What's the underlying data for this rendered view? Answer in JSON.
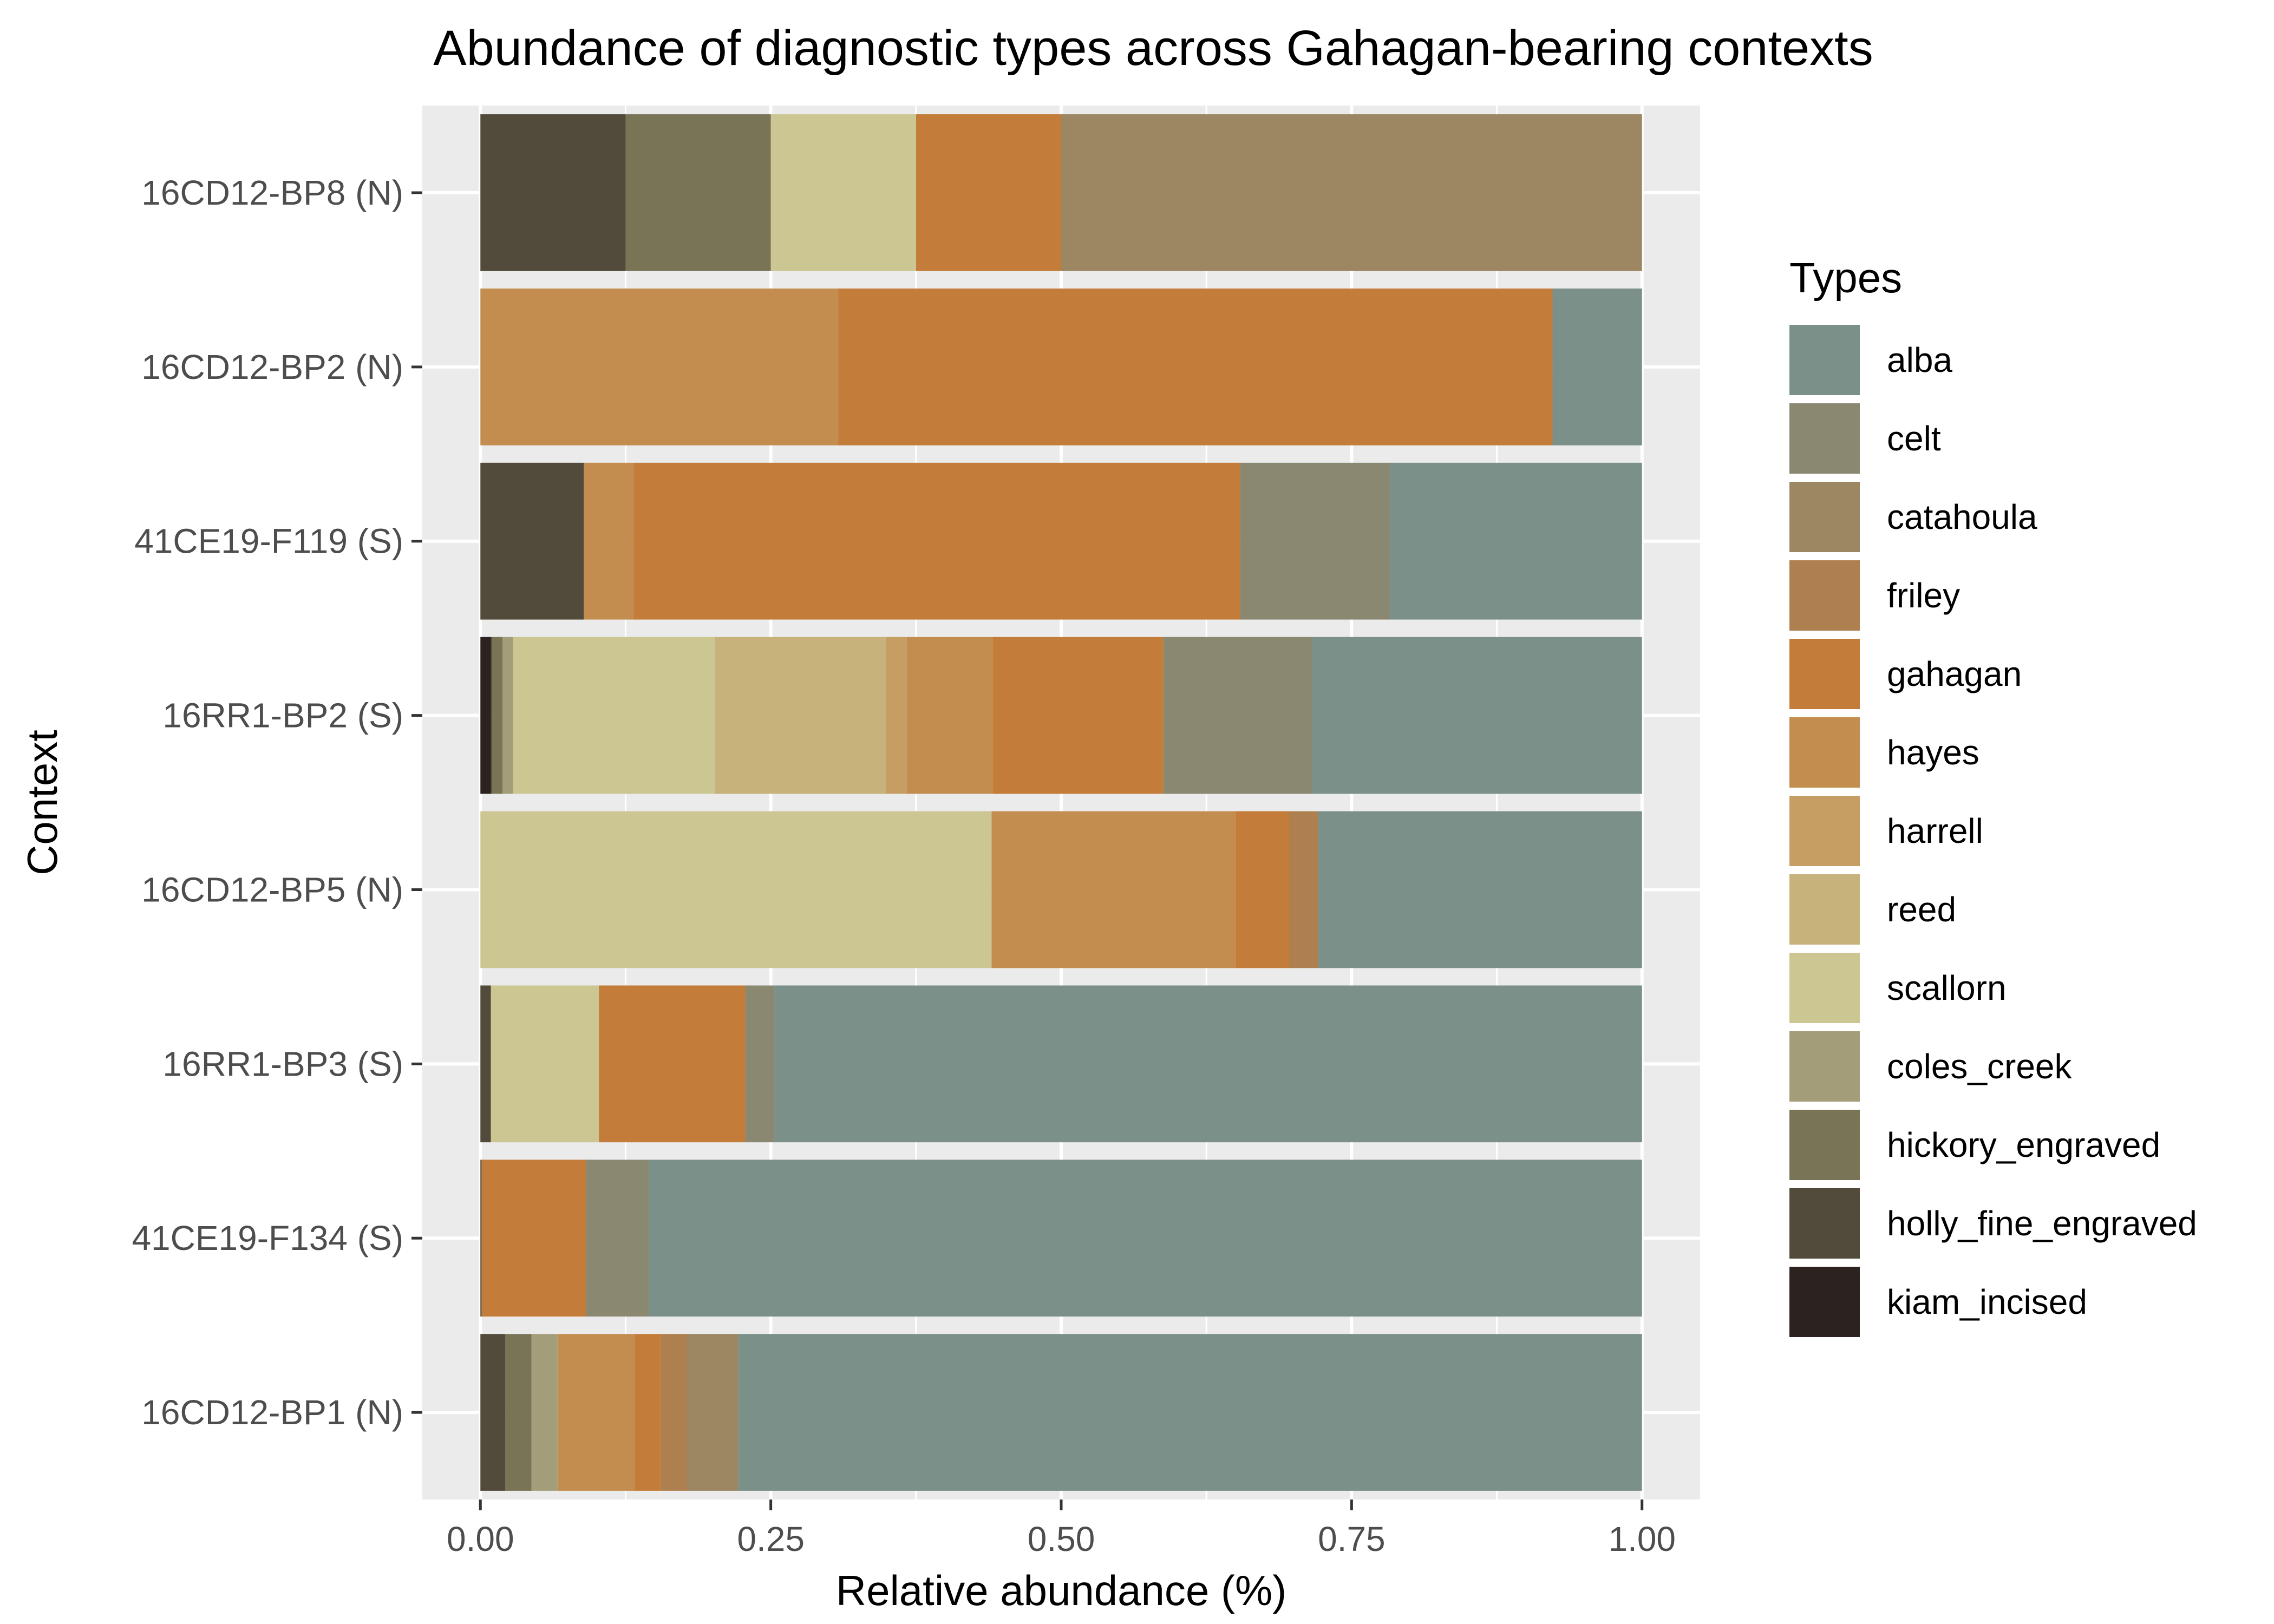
{
  "chart_data": {
    "type": "bar",
    "orientation": "horizontal",
    "stacked": true,
    "title": "Abundance of diagnostic types across Gahagan-bearing contexts",
    "xlabel": "Relative abundance (%)",
    "ylabel": "Context",
    "xlim": [
      0,
      1
    ],
    "x_ticks": [
      "0.00",
      "0.25",
      "0.50",
      "0.75",
      "1.00"
    ],
    "x_tick_values": [
      0,
      0.25,
      0.5,
      0.75,
      1.0
    ],
    "grid": true,
    "legend_position": "right",
    "legend_title": "Types",
    "categories": [
      "16CD12-BP8 (N)",
      "16CD12-BP2 (N)",
      "41CE19-F119 (S)",
      "16RR1-BP2 (S)",
      "16CD12-BP5 (N)",
      "16RR1-BP3 (S)",
      "41CE19-F134 (S)",
      "16CD12-BP1 (N)"
    ],
    "series": [
      {
        "name": "alba",
        "color": "#7a9088",
        "values": [
          0,
          0.077,
          0.217,
          0.284,
          0.279,
          0.747,
          0.855,
          0.761
        ]
      },
      {
        "name": "celt",
        "color": "#8b8872",
        "values": [
          0,
          0,
          0.129,
          0.128,
          0,
          0.025,
          0.054,
          0
        ]
      },
      {
        "name": "catahoula",
        "color": "#9d8762",
        "values": [
          0.5,
          0,
          0,
          0,
          0,
          0,
          0,
          0.043
        ]
      },
      {
        "name": "friley",
        "color": "#ae8050",
        "values": [
          0,
          0,
          0,
          0,
          0.025,
          0,
          0,
          0.022
        ]
      },
      {
        "name": "gahagan",
        "color": "#c37c39",
        "values": [
          0.125,
          0.615,
          0.522,
          0.147,
          0.046,
          0.126,
          0.09,
          0.022
        ]
      },
      {
        "name": "hayes",
        "color": "#c48d50",
        "values": [
          0,
          0.308,
          0.043,
          0.074,
          0.21,
          0,
          0,
          0.065
        ]
      },
      {
        "name": "harrell",
        "color": "#c69e63",
        "values": [
          0,
          0,
          0,
          0.018,
          0,
          0,
          0,
          0
        ]
      },
      {
        "name": "reed",
        "color": "#c8b27c",
        "values": [
          0,
          0,
          0,
          0.147,
          0,
          0,
          0,
          0
        ]
      },
      {
        "name": "scallorn",
        "color": "#cbc692",
        "values": [
          0.125,
          0,
          0,
          0.174,
          0.44,
          0.093,
          0,
          0
        ]
      },
      {
        "name": "coles_creek",
        "color": "#a39e79",
        "values": [
          0,
          0,
          0,
          0.009,
          0,
          0,
          0,
          0.022
        ]
      },
      {
        "name": "hickory_engraved",
        "color": "#7a7457",
        "values": [
          0.125,
          0,
          0,
          0.009,
          0,
          0,
          0,
          0.022
        ]
      },
      {
        "name": "holly_fine_engraved",
        "color": "#524b3b",
        "values": [
          0.125,
          0,
          0.089,
          0.001,
          0,
          0.009,
          0.001,
          0.021
        ]
      },
      {
        "name": "kiam_incised",
        "color": "#2c2220",
        "values": [
          0,
          0,
          0,
          0.009,
          0,
          0,
          0,
          0
        ]
      }
    ]
  }
}
